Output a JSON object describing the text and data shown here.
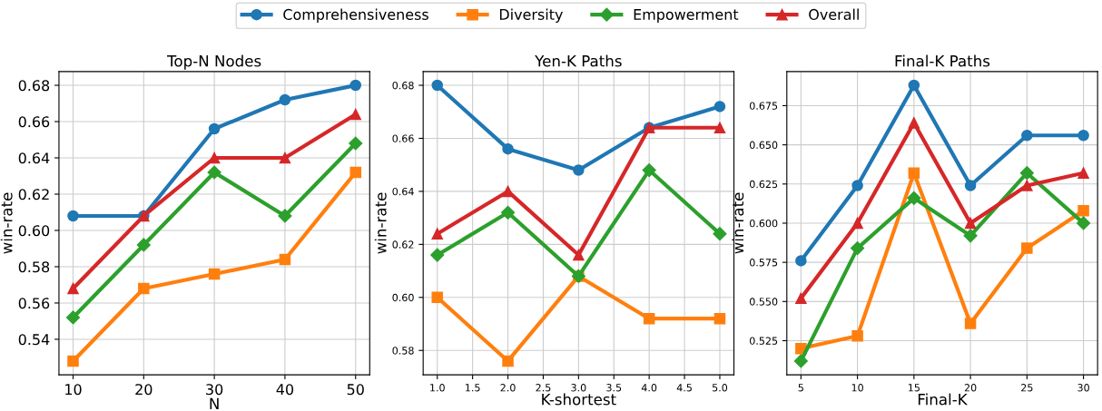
{
  "chart_data": [
    {
      "type": "line",
      "title": "Top-N Nodes",
      "xlabel": "N",
      "ylabel": "win-rate",
      "x": [
        10,
        20,
        30,
        40,
        50
      ],
      "xlim": [
        8,
        52
      ],
      "xticks": [
        10,
        20,
        30,
        40,
        50
      ],
      "ylim": [
        0.5204,
        0.6876
      ],
      "yticks": [
        {
          "value": 0.54,
          "label": "0.54"
        },
        {
          "value": 0.56,
          "label": "0.56"
        },
        {
          "value": 0.58,
          "label": "0.58"
        },
        {
          "value": 0.6,
          "label": "0.60"
        },
        {
          "value": 0.62,
          "label": "0.62"
        },
        {
          "value": 0.64,
          "label": "0.64"
        },
        {
          "value": 0.66,
          "label": "0.66"
        },
        {
          "value": 0.68,
          "label": "0.68"
        }
      ],
      "grid": true,
      "legend": "top",
      "series": [
        {
          "name": "Comprehensiveness",
          "color": "#1f77b4",
          "marker": "circle",
          "values": [
            0.608,
            0.608,
            0.656,
            0.672,
            0.68
          ]
        },
        {
          "name": "Diversity",
          "color": "#ff7f0e",
          "marker": "square",
          "values": [
            0.528,
            0.568,
            0.576,
            0.584,
            0.632
          ]
        },
        {
          "name": "Empowerment",
          "color": "#2ca02c",
          "marker": "diamond",
          "values": [
            0.552,
            0.592,
            0.632,
            0.608,
            0.648
          ]
        },
        {
          "name": "Overall",
          "color": "#d62728",
          "marker": "triangle",
          "values": [
            0.568,
            0.608,
            0.64,
            0.64,
            0.664
          ]
        }
      ]
    },
    {
      "type": "line",
      "title": "Yen-K Paths",
      "xlabel": "K-shortest",
      "ylabel": "win-rate",
      "x": [
        1,
        2,
        3,
        4,
        5
      ],
      "xlim": [
        0.8,
        5.2
      ],
      "xticks": [
        {
          "value": 1,
          "label": "1.0"
        },
        {
          "value": 1.5,
          "label": "1.5"
        },
        {
          "value": 2,
          "label": "2.0"
        },
        {
          "value": 2.5,
          "label": "2.5"
        },
        {
          "value": 3,
          "label": "3.0"
        },
        {
          "value": 3.5,
          "label": "3.5"
        },
        {
          "value": 4,
          "label": "4.0"
        },
        {
          "value": 4.5,
          "label": "4.5"
        },
        {
          "value": 5,
          "label": "5.0"
        }
      ],
      "ylim": [
        0.5708,
        0.6852
      ],
      "yticks": [
        {
          "value": 0.58,
          "label": "0.58"
        },
        {
          "value": 0.6,
          "label": "0.60"
        },
        {
          "value": 0.62,
          "label": "0.62"
        },
        {
          "value": 0.64,
          "label": "0.64"
        },
        {
          "value": 0.66,
          "label": "0.66"
        },
        {
          "value": 0.68,
          "label": "0.68"
        }
      ],
      "grid": true,
      "legend": "top",
      "series": [
        {
          "name": "Comprehensiveness",
          "color": "#1f77b4",
          "marker": "circle",
          "values": [
            0.68,
            0.656,
            0.648,
            0.664,
            0.672
          ]
        },
        {
          "name": "Diversity",
          "color": "#ff7f0e",
          "marker": "square",
          "values": [
            0.6,
            0.576,
            0.608,
            0.592,
            0.592
          ]
        },
        {
          "name": "Empowerment",
          "color": "#2ca02c",
          "marker": "diamond",
          "values": [
            0.616,
            0.632,
            0.608,
            0.648,
            0.624
          ]
        },
        {
          "name": "Overall",
          "color": "#d62728",
          "marker": "triangle",
          "values": [
            0.624,
            0.64,
            0.616,
            0.664,
            0.664
          ]
        }
      ]
    },
    {
      "type": "line",
      "title": "Final-K Paths",
      "xlabel": "Final-K",
      "ylabel": "win-rate",
      "x": [
        5,
        10,
        15,
        20,
        25,
        30
      ],
      "xlim": [
        3.75,
        31.25
      ],
      "xticks": [
        5,
        10,
        15,
        20,
        25,
        30
      ],
      "ylim": [
        0.5032,
        0.6968
      ],
      "yticks": [
        {
          "value": 0.525,
          "label": "0.525"
        },
        {
          "value": 0.55,
          "label": "0.550"
        },
        {
          "value": 0.575,
          "label": "0.575"
        },
        {
          "value": 0.6,
          "label": "0.600"
        },
        {
          "value": 0.625,
          "label": "0.625"
        },
        {
          "value": 0.65,
          "label": "0.650"
        },
        {
          "value": 0.675,
          "label": "0.675"
        }
      ],
      "grid": true,
      "legend": "top",
      "series": [
        {
          "name": "Comprehensiveness",
          "color": "#1f77b4",
          "marker": "circle",
          "values": [
            0.576,
            0.624,
            0.688,
            0.624,
            0.656,
            0.656
          ]
        },
        {
          "name": "Diversity",
          "color": "#ff7f0e",
          "marker": "square",
          "values": [
            0.52,
            0.528,
            0.632,
            0.536,
            0.584,
            0.608
          ]
        },
        {
          "name": "Empowerment",
          "color": "#2ca02c",
          "marker": "diamond",
          "values": [
            0.512,
            0.584,
            0.616,
            0.592,
            0.632,
            0.6
          ]
        },
        {
          "name": "Overall",
          "color": "#d62728",
          "marker": "triangle",
          "values": [
            0.552,
            0.6,
            0.664,
            0.6,
            0.624,
            0.632
          ]
        }
      ]
    }
  ]
}
